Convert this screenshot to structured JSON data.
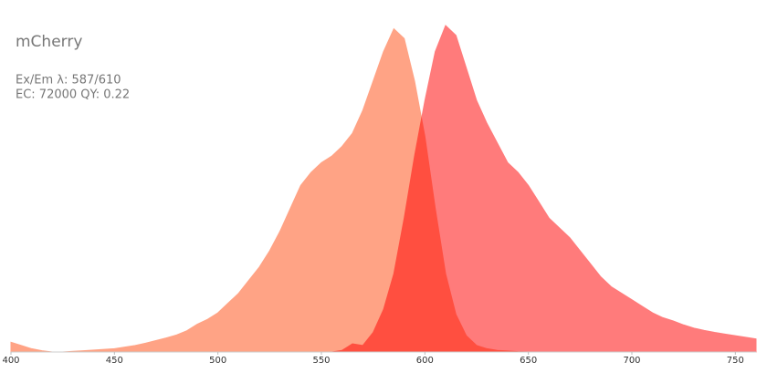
{
  "chart_data": {
    "type": "area",
    "title": "mCherry",
    "annotations": [
      "Ex/Em λ: 587/610",
      "EC: 72000  QY: 0.22"
    ],
    "x": [
      400,
      405,
      410,
      415,
      420,
      425,
      430,
      435,
      440,
      445,
      450,
      455,
      460,
      465,
      470,
      475,
      480,
      485,
      490,
      495,
      500,
      505,
      510,
      515,
      520,
      525,
      530,
      535,
      540,
      545,
      550,
      555,
      560,
      565,
      570,
      575,
      580,
      585,
      590,
      595,
      600,
      605,
      610,
      615,
      620,
      625,
      630,
      635,
      640,
      645,
      650,
      655,
      660,
      665,
      670,
      675,
      680,
      685,
      690,
      695,
      700,
      705,
      710,
      715,
      720,
      725,
      730,
      735,
      740,
      745,
      750,
      755,
      760
    ],
    "series": [
      {
        "color": "#ffa385",
        "values": [
          0.03,
          0.02,
          0.01,
          0.004,
          0,
          0,
          0.002,
          0.004,
          0.006,
          0.008,
          0.01,
          0.015,
          0.02,
          0.027,
          0.035,
          0.043,
          0.052,
          0.065,
          0.085,
          0.1,
          0.12,
          0.15,
          0.18,
          0.22,
          0.26,
          0.31,
          0.37,
          0.44,
          0.51,
          0.55,
          0.58,
          0.6,
          0.63,
          0.67,
          0.74,
          0.83,
          0.92,
          0.99,
          0.96,
          0.83,
          0.66,
          0.44,
          0.24,
          0.115,
          0.05,
          0.02,
          0.01,
          0.005,
          0.003,
          0.001,
          0,
          null,
          null,
          null,
          null,
          null,
          null,
          null,
          null,
          null,
          null,
          null,
          null,
          null,
          null,
          null,
          null,
          null,
          null,
          null,
          null,
          null,
          null
        ]
      },
      {
        "color": "#ff7b7b",
        "values": [
          null,
          null,
          null,
          null,
          null,
          null,
          null,
          null,
          null,
          null,
          null,
          null,
          null,
          null,
          null,
          null,
          null,
          null,
          null,
          null,
          null,
          null,
          null,
          null,
          null,
          null,
          null,
          null,
          null,
          null,
          null,
          0,
          0.005,
          0.025,
          0.02,
          0.06,
          0.13,
          0.24,
          0.41,
          0.6,
          0.77,
          0.92,
          1,
          0.97,
          0.87,
          0.77,
          0.7,
          0.64,
          0.58,
          0.55,
          0.51,
          0.46,
          0.41,
          0.38,
          0.35,
          0.31,
          0.27,
          0.23,
          0.2,
          0.18,
          0.16,
          0.14,
          0.12,
          0.105,
          0.095,
          0.083,
          0.073,
          0.066,
          0.06,
          0.055,
          0.05,
          0.045,
          0.04
        ]
      }
    ],
    "xlim": [
      400,
      760
    ],
    "xticks": [
      400,
      450,
      500,
      550,
      600,
      650,
      700,
      750
    ],
    "ylim": [
      0,
      1
    ]
  }
}
